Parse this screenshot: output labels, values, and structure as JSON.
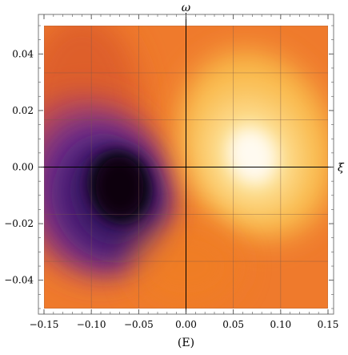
{
  "chart_data": {
    "type": "heatmap",
    "title": "",
    "caption": "(E)",
    "xlabel": "ξ",
    "ylabel": "ω",
    "xlim": [
      -0.15,
      0.15
    ],
    "ylim": [
      -0.05,
      0.05
    ],
    "x_ticks": [
      -0.15,
      -0.1,
      -0.05,
      0.0,
      0.05,
      0.1,
      0.15
    ],
    "x_tick_labels": [
      "−0.15",
      "−0.10",
      "−0.05",
      "0.00",
      "0.05",
      "0.10",
      "0.15"
    ],
    "y_ticks": [
      0.04,
      0.02,
      0.0,
      -0.02,
      -0.04
    ],
    "y_tick_labels": [
      "0.04",
      "0.02",
      "0.00",
      "−0.02",
      "−0.04"
    ],
    "grid": true,
    "grid_x": [
      -0.15,
      -0.1,
      -0.05,
      0.0,
      0.05,
      0.1,
      0.15
    ],
    "grid_y": [
      0.05,
      0.0333,
      0.0167,
      0.0,
      -0.0167,
      -0.0333,
      -0.05
    ],
    "colormap": [
      "#0d0208",
      "#3a1466",
      "#6a2d8c",
      "#b2445f",
      "#e25d2a",
      "#f07f24",
      "#f9b94a",
      "#fde49a",
      "#fffaf0"
    ],
    "background_color": "#ef7a2c",
    "features": [
      {
        "kind": "minimum",
        "x": -0.07,
        "y": -0.007,
        "value": 0.0
      },
      {
        "kind": "maximum",
        "x": 0.07,
        "y": 0.004,
        "value": 1.0
      }
    ]
  }
}
